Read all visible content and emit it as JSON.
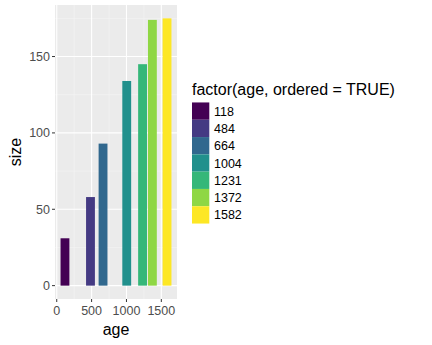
{
  "chart_data": {
    "type": "bar",
    "x_label": "age",
    "y_label": "size",
    "legend_title": "factor(age, ordered = TRUE)",
    "x": [
      118,
      484,
      664,
      1004,
      1231,
      1372,
      1582
    ],
    "values": [
      31,
      58,
      93,
      134,
      145,
      174,
      175
    ],
    "colors": [
      "#440154",
      "#443A83",
      "#31688E",
      "#21908C",
      "#35B779",
      "#8FD744",
      "#FDE725"
    ],
    "xlim": [
      -25,
      1725
    ],
    "xticks": [
      0,
      500,
      1000,
      1500
    ],
    "ylim": [
      -8.75,
      183.75
    ],
    "yticks": [
      0,
      50,
      100,
      150
    ],
    "grid": true,
    "legend": "right"
  }
}
